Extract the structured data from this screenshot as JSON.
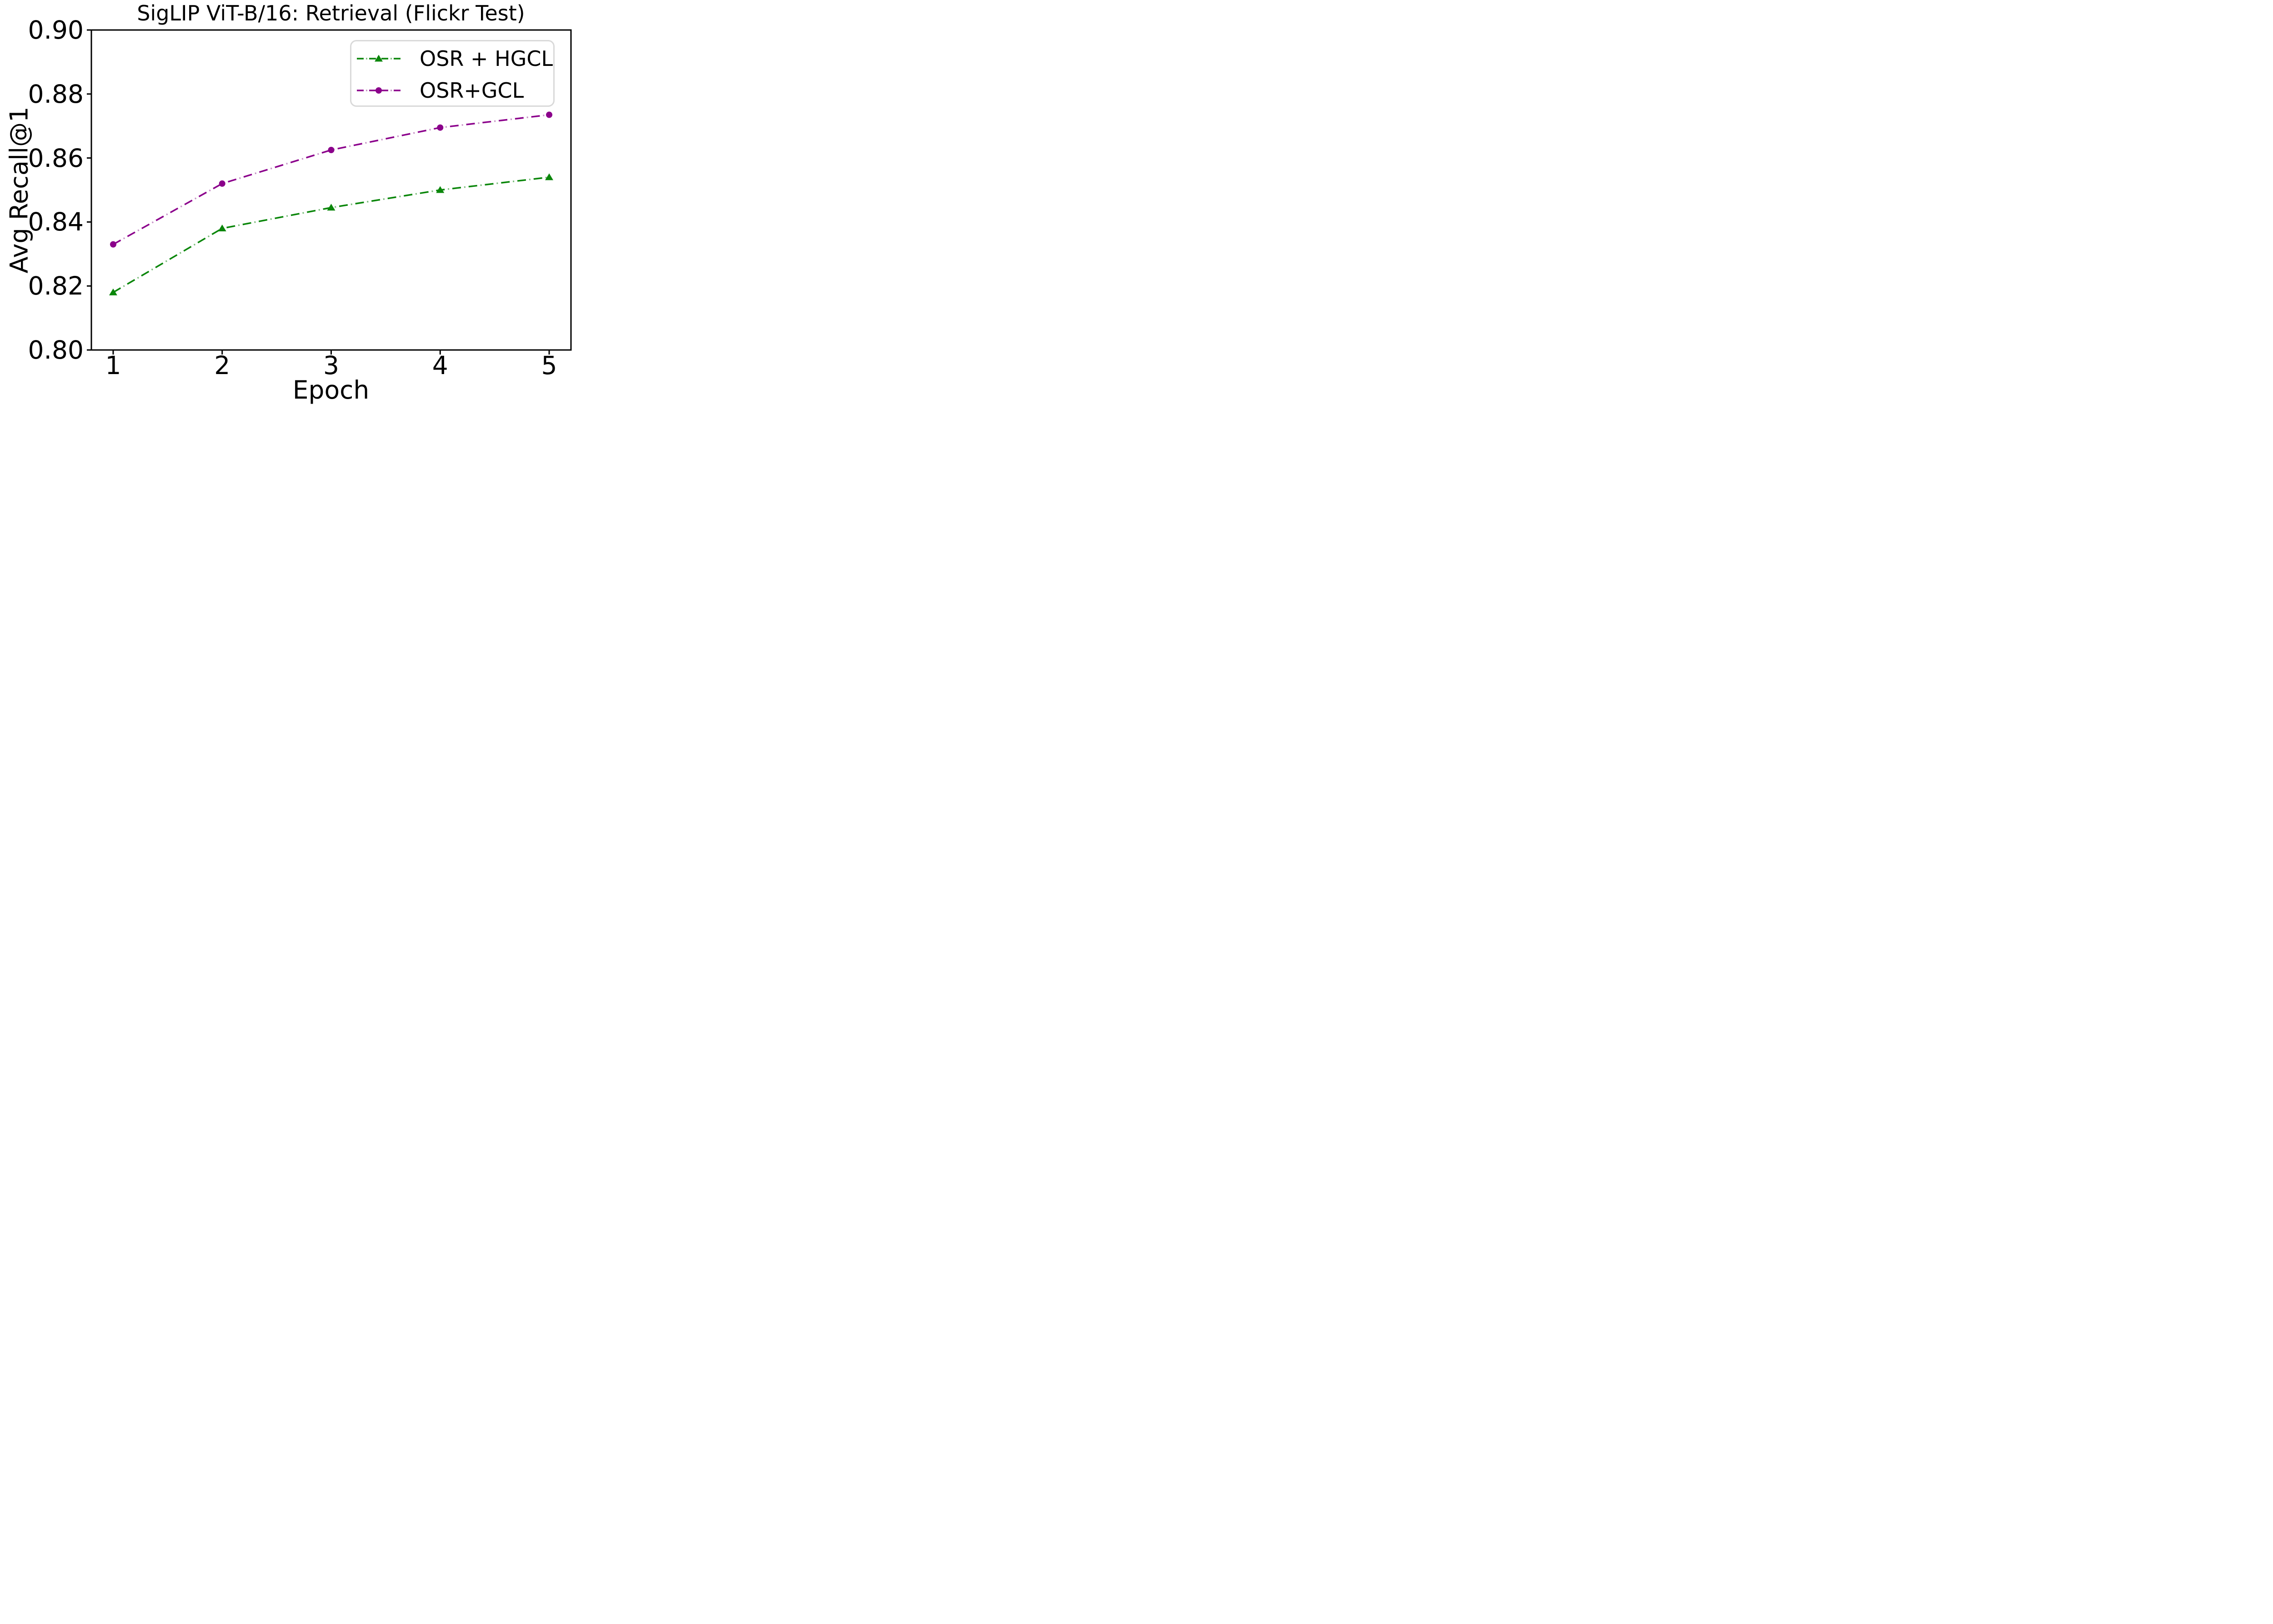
{
  "figure": {
    "background": "#ffffff"
  },
  "colors": {
    "text": "#000000",
    "spine": "#000000",
    "legend_border": "#d9d9d9"
  },
  "chart_data": {
    "type": "line",
    "title": "SigLIP ViT-B/16: Retrieval (Flickr Test)",
    "xlabel": "Epoch",
    "ylabel": "Avg Recall@1",
    "x": [
      1,
      2,
      3,
      4,
      5
    ],
    "xtick_labels": [
      "1",
      "2",
      "3",
      "4",
      "5"
    ],
    "yticks": [
      0.9,
      0.88,
      0.86,
      0.84,
      0.82,
      0.8
    ],
    "ytick_labels": [
      "0.90",
      "0.88",
      "0.86",
      "0.84",
      "0.82",
      "0.80"
    ],
    "xlim": [
      0.8,
      5.2
    ],
    "ylim": [
      0.8,
      0.9
    ],
    "grid": false,
    "legend_position": "upper right",
    "line_style": "dash-dot",
    "series": [
      {
        "name": "OSR + HGCL",
        "marker": "triangle",
        "color": "#0a860a",
        "dot_color": "#7dbe7d",
        "values": [
          0.818,
          0.838,
          0.8445,
          0.85,
          0.854
        ]
      },
      {
        "name": "OSR+GCL",
        "marker": "circle",
        "color": "#8b008b",
        "dot_color": "#c794c7",
        "values": [
          0.833,
          0.852,
          0.8625,
          0.8695,
          0.8735
        ]
      }
    ]
  }
}
